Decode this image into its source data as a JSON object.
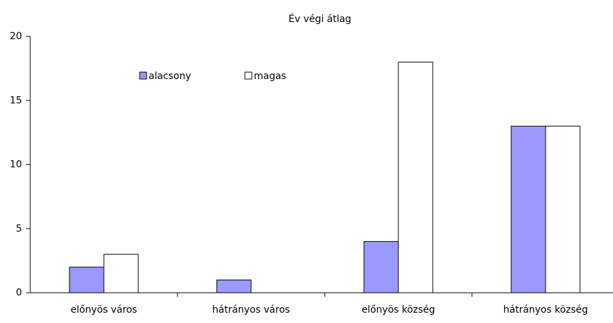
{
  "chart_data": {
    "type": "bar",
    "title": "Év végi átlag",
    "categories": [
      "előnyös város",
      "hátrányos város",
      "előnyös község",
      "hátrányos község"
    ],
    "series": [
      {
        "name": "alacsony",
        "color": "#9999ff",
        "values": [
          2,
          1,
          4,
          13
        ]
      },
      {
        "name": "magas",
        "color": "#ffffff",
        "values": [
          3,
          0,
          18,
          13
        ]
      }
    ],
    "ylim": [
      0,
      20
    ],
    "yticks": [
      0,
      5,
      10,
      15,
      20
    ]
  }
}
